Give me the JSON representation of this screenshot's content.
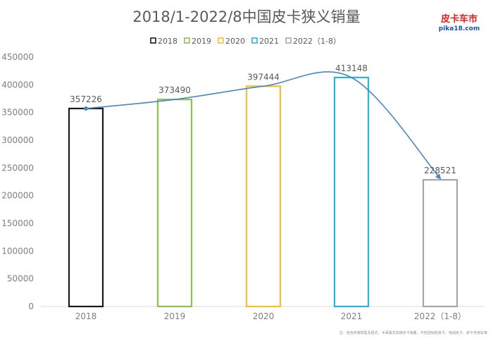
{
  "chart_data": {
    "type": "bar",
    "title": "2018/1-2022/8中国皮卡狭义销量",
    "categories": [
      "2018",
      "2019",
      "2020",
      "2021",
      "2022（1-8）"
    ],
    "values": [
      357226,
      373490,
      397444,
      413148,
      228521
    ],
    "data_labels": [
      "357226",
      "373490",
      "397444",
      "413148",
      "228521"
    ],
    "series_colors": [
      "#1a1a1a",
      "#8cc152",
      "#f2c12e",
      "#2eb3d8",
      "#a6a6a6"
    ],
    "legend": [
      "2018",
      "2019",
      "2020",
      "2021",
      "2022（1-8）"
    ],
    "legend_position": "top-center",
    "ylim": [
      0,
      450000
    ],
    "yticks": [
      "0",
      "50000",
      "100000",
      "150000",
      "200000",
      "250000",
      "300000",
      "350000",
      "400000",
      "450000"
    ],
    "grid": false,
    "xlabel": "",
    "ylabel": "",
    "trend_line": {
      "color": "#4a86c5",
      "note": "smooth curve through bar tops with arrow to 2022"
    }
  },
  "brand": {
    "name": "皮卡车市",
    "url": "pika18.com"
  },
  "footnote": "注：包含终端零售及经式、半承载式非绑定卡销量、不包括NJ轻皮卡、电动皮卡、皮卡专用车等"
}
